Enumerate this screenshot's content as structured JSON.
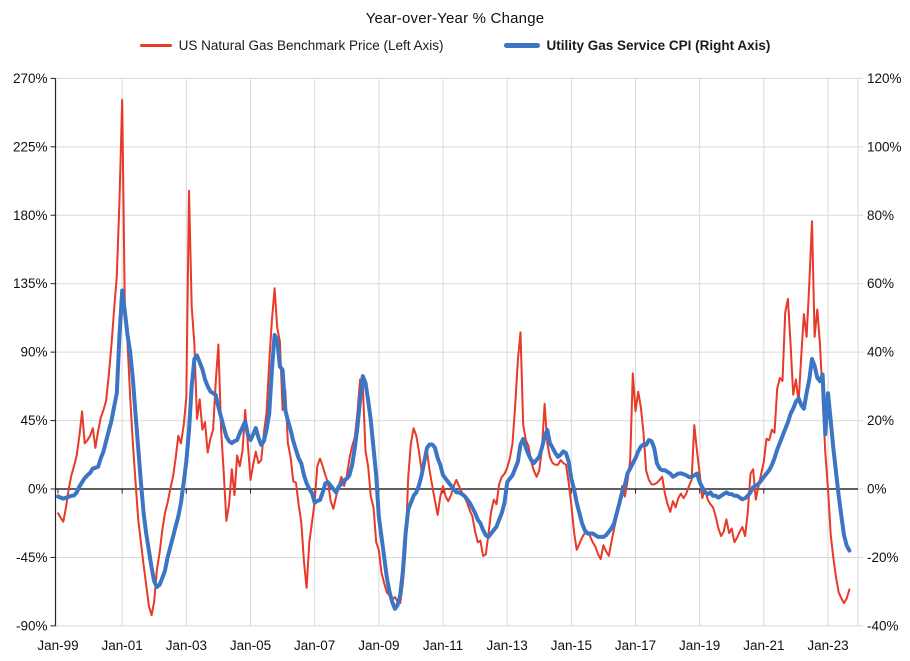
{
  "title": "Year-over-Year % Change",
  "legend": {
    "items": [
      {
        "label": "US Natural Gas Benchmark Price (Left Axis)",
        "color": "#E83929",
        "bold": false
      },
      {
        "label": "Utility Gas Service CPI (Right Axis)",
        "color": "#3B75C4",
        "bold": true
      }
    ]
  },
  "colors": {
    "red_series": "#E83929",
    "blue_series": "#3B75C4",
    "gridline": "#d9d9d9",
    "zero_line": "#000000",
    "axis": "#262626",
    "text": "#111111"
  },
  "chart_data": {
    "type": "line",
    "title": "Year-over-Year % Change",
    "x_unit": "month",
    "x_start_label": "Jan-99",
    "x_end_label": "Sep-23",
    "x_tick_labels": [
      "Jan-99",
      "Jan-01",
      "Jan-03",
      "Jan-05",
      "Jan-07",
      "Jan-09",
      "Jan-11",
      "Jan-13",
      "Jan-15",
      "Jan-17",
      "Jan-19",
      "Jan-21",
      "Jan-23"
    ],
    "x_tick_month_index": [
      0,
      24,
      48,
      72,
      96,
      120,
      144,
      168,
      192,
      216,
      240,
      264,
      288
    ],
    "left_axis": {
      "label_suffix": "%",
      "tick_labels": [
        "270%",
        "225%",
        "180%",
        "135%",
        "90%",
        "45%",
        "0%",
        "-45%",
        "-90%"
      ],
      "tick_values": [
        270,
        225,
        180,
        135,
        90,
        45,
        0,
        -45,
        -90
      ],
      "range": [
        -90,
        270
      ]
    },
    "right_axis": {
      "label_suffix": "%",
      "tick_labels": [
        "120%",
        "100%",
        "80%",
        "60%",
        "40%",
        "20%",
        "0%",
        "-20%",
        "-40%"
      ],
      "tick_values": [
        120,
        100,
        80,
        60,
        40,
        20,
        0,
        -20,
        -40
      ],
      "range": [
        -40,
        120
      ]
    },
    "grid": true,
    "legend_position": "top",
    "series": [
      {
        "name": "US Natural Gas Benchmark Price (Left Axis)",
        "axis": "left",
        "color": "#E83929",
        "stroke_width": 2,
        "values": [
          -16,
          -19,
          -21.5,
          -12,
          0,
          9,
          15,
          22,
          35,
          51,
          30,
          32,
          35,
          40,
          27,
          38,
          47,
          52,
          58,
          75,
          95,
          118,
          140,
          190,
          256,
          120,
          96,
          60,
          30,
          5,
          -20,
          -35,
          -50,
          -63,
          -77,
          -83,
          -74,
          -53,
          -42,
          -27,
          -16,
          -9,
          0,
          8,
          20,
          35,
          30,
          42,
          60,
          196,
          120,
          95,
          46,
          59,
          39,
          44,
          24,
          33,
          39,
          70,
          95,
          39,
          10,
          -21,
          -10,
          13,
          -4,
          22,
          15,
          25,
          52,
          30,
          6,
          16,
          24.5,
          17,
          19,
          37,
          50,
          83,
          111,
          132,
          106,
          97,
          52,
          65,
          30,
          21,
          5,
          4,
          -10,
          -22,
          -48,
          -65,
          -35,
          -22,
          -8,
          15,
          20,
          15,
          9,
          4,
          -8,
          -13,
          -5,
          2,
          8,
          2,
          8,
          20,
          28,
          34,
          50,
          72,
          68,
          25,
          15,
          -5,
          -12,
          -35,
          -40,
          -55,
          -62,
          -68,
          -70,
          -73,
          -71,
          -74,
          -75,
          -62,
          -40,
          8,
          30,
          40,
          35,
          25,
          12,
          18,
          25,
          12,
          2,
          -8,
          -17,
          -5,
          2,
          -5,
          -8,
          -4,
          2,
          6,
          2,
          -2,
          -5,
          -9,
          -14,
          -18,
          -28,
          -35,
          -34,
          -44,
          -43,
          -30,
          -15,
          -7,
          -10,
          3,
          8,
          10,
          14,
          20,
          30,
          55,
          85,
          103,
          42,
          32,
          28,
          18,
          12,
          8,
          12,
          26,
          56,
          30,
          21,
          17,
          16,
          16,
          19,
          17,
          16,
          4,
          -10,
          -28,
          -40,
          -36,
          -32,
          -29,
          -28,
          -31,
          -35,
          -38,
          -43,
          -46,
          -37,
          -41,
          -44,
          -35,
          -26,
          -18,
          -10,
          2,
          -5,
          5,
          19,
          76,
          51,
          64,
          54,
          37,
          12,
          6,
          3,
          3,
          4,
          6,
          8,
          -3,
          -10,
          -15,
          -8,
          -12,
          -6,
          -3,
          -6,
          -3,
          2,
          6,
          42,
          25,
          10,
          -6,
          0,
          -7,
          -10,
          -12,
          -18,
          -26,
          -31,
          -28,
          -20,
          -29,
          -26,
          -35,
          -32,
          -28,
          -25,
          -31,
          -15,
          10,
          13,
          -7,
          2,
          10,
          18,
          33,
          32,
          39,
          37,
          66,
          73,
          71,
          116,
          125,
          95,
          62,
          72,
          57,
          88,
          115,
          100,
          135,
          176,
          100,
          118,
          95,
          60,
          24,
          0,
          -30,
          -45,
          -58,
          -68,
          -72,
          -75,
          -72,
          -66
        ]
      },
      {
        "name": "Utility Gas Service CPI (Right Axis)",
        "axis": "right",
        "color": "#3B75C4",
        "stroke_width": 4,
        "values": [
          -2.2,
          -2.5,
          -2.8,
          -2.5,
          -2.3,
          -2,
          -1.9,
          -1,
          0.7,
          2,
          3.2,
          4,
          4.7,
          6,
          6.2,
          6.5,
          9,
          11,
          14,
          17,
          20,
          24,
          28,
          45,
          58,
          52,
          45,
          40,
          32,
          22,
          12,
          2,
          -7,
          -13,
          -18,
          -23,
          -27,
          -28.6,
          -28,
          -26,
          -24,
          -20,
          -17,
          -14,
          -11,
          -8,
          -4,
          2,
          8,
          17,
          30,
          38,
          39,
          37,
          35,
          32,
          30,
          28.5,
          28,
          27.5,
          24,
          21,
          18,
          15.3,
          14,
          13.4,
          14,
          14.3,
          16.4,
          18,
          19.7,
          16,
          14.3,
          16,
          17.8,
          15,
          12.9,
          14,
          17.3,
          22,
          34.8,
          45,
          43.6,
          35.8,
          34.8,
          23,
          20,
          17.3,
          14,
          11.4,
          9,
          7.5,
          4,
          1.7,
          0,
          -1.2,
          -4,
          -3.5,
          -3.2,
          -1,
          1.7,
          2,
          1,
          0,
          -1,
          0.7,
          1.5,
          2.5,
          3,
          4,
          7,
          12,
          18,
          26,
          33,
          31,
          26,
          20,
          12,
          4,
          -8,
          -14,
          -20,
          -26,
          -30,
          -33,
          -35,
          -34,
          -31,
          -24,
          -13,
          -6,
          -4,
          -2,
          -1,
          1,
          4,
          8,
          12,
          13,
          13,
          12,
          9,
          7,
          4,
          3,
          2,
          1,
          0,
          -1,
          -1,
          -1.5,
          -2,
          -3,
          -4,
          -5.5,
          -7,
          -9,
          -10,
          -12,
          -13.5,
          -14,
          -13,
          -12,
          -11,
          -9,
          -7,
          -4,
          2,
          3,
          4,
          6,
          8,
          13,
          14.6,
          12,
          10,
          8.5,
          7.6,
          8.5,
          9.4,
          12,
          15.3,
          17.3,
          13.4,
          12,
          10.5,
          9.4,
          10,
          11,
          10.5,
          8,
          3,
          0,
          -4,
          -7,
          -10,
          -12,
          -13,
          -13,
          -13,
          -13.5,
          -14,
          -14,
          -14,
          -13.5,
          -12.5,
          -11.5,
          -10,
          -7,
          -4,
          -1,
          1,
          4.6,
          6,
          7.5,
          9,
          11,
          12.4,
          13,
          12.9,
          14.3,
          14,
          12,
          7.5,
          6,
          5.5,
          5.5,
          5,
          4.5,
          3.6,
          4,
          4.5,
          4.6,
          4.3,
          4,
          3.5,
          3.5,
          4,
          4.5,
          2,
          0.5,
          -1,
          -1.5,
          -1,
          -2,
          -2,
          -2.5,
          -2,
          -1.5,
          -1,
          -1.5,
          -1.5,
          -2,
          -2,
          -2.5,
          -3,
          -2.7,
          -2,
          -1,
          0.5,
          1,
          1.5,
          2.5,
          3.5,
          4.5,
          5.5,
          7,
          9,
          11.5,
          13.5,
          15.5,
          17.5,
          19.5,
          22,
          23.5,
          25.5,
          26.5,
          24.5,
          23.5,
          28,
          32,
          38,
          36,
          32.5,
          31.5,
          33.5,
          16,
          28,
          20,
          12,
          5,
          -2,
          -8,
          -13.5,
          -16.5,
          -18
        ]
      }
    ]
  }
}
